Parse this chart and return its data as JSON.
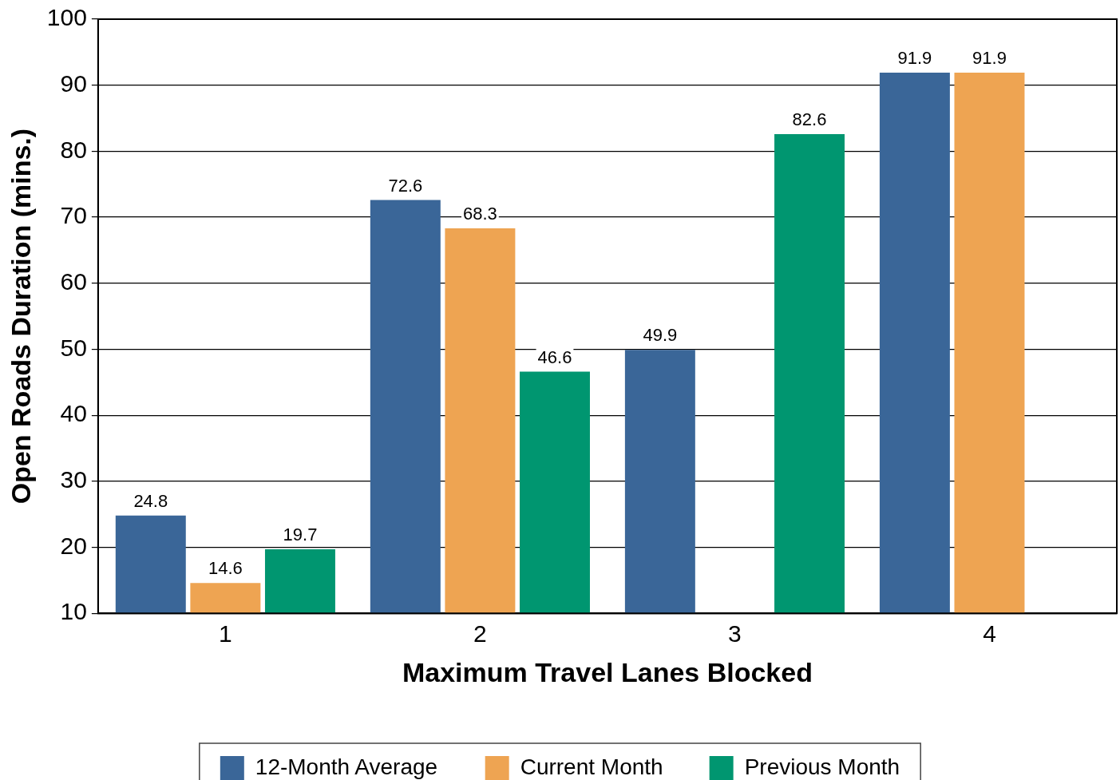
{
  "chart_data": {
    "type": "bar",
    "xlabel": "Maximum Travel Lanes Blocked",
    "ylabel": "Open Roads Duration (mins.)",
    "categories": [
      "1",
      "2",
      "3",
      "4"
    ],
    "series": [
      {
        "name": "12-Month Average",
        "color": "#3a6698",
        "values": [
          24.8,
          72.6,
          49.9,
          91.9
        ]
      },
      {
        "name": "Current Month",
        "color": "#eea452",
        "values": [
          14.6,
          68.3,
          null,
          91.9
        ]
      },
      {
        "name": "Previous Month",
        "color": "#009670",
        "values": [
          19.7,
          46.6,
          82.6,
          null
        ]
      }
    ],
    "ylim": [
      10,
      100
    ],
    "yticks": [
      10,
      20,
      30,
      40,
      50,
      60,
      70,
      80,
      90,
      100
    ],
    "grid": "y",
    "legend": "bottom",
    "data_labels": true
  }
}
